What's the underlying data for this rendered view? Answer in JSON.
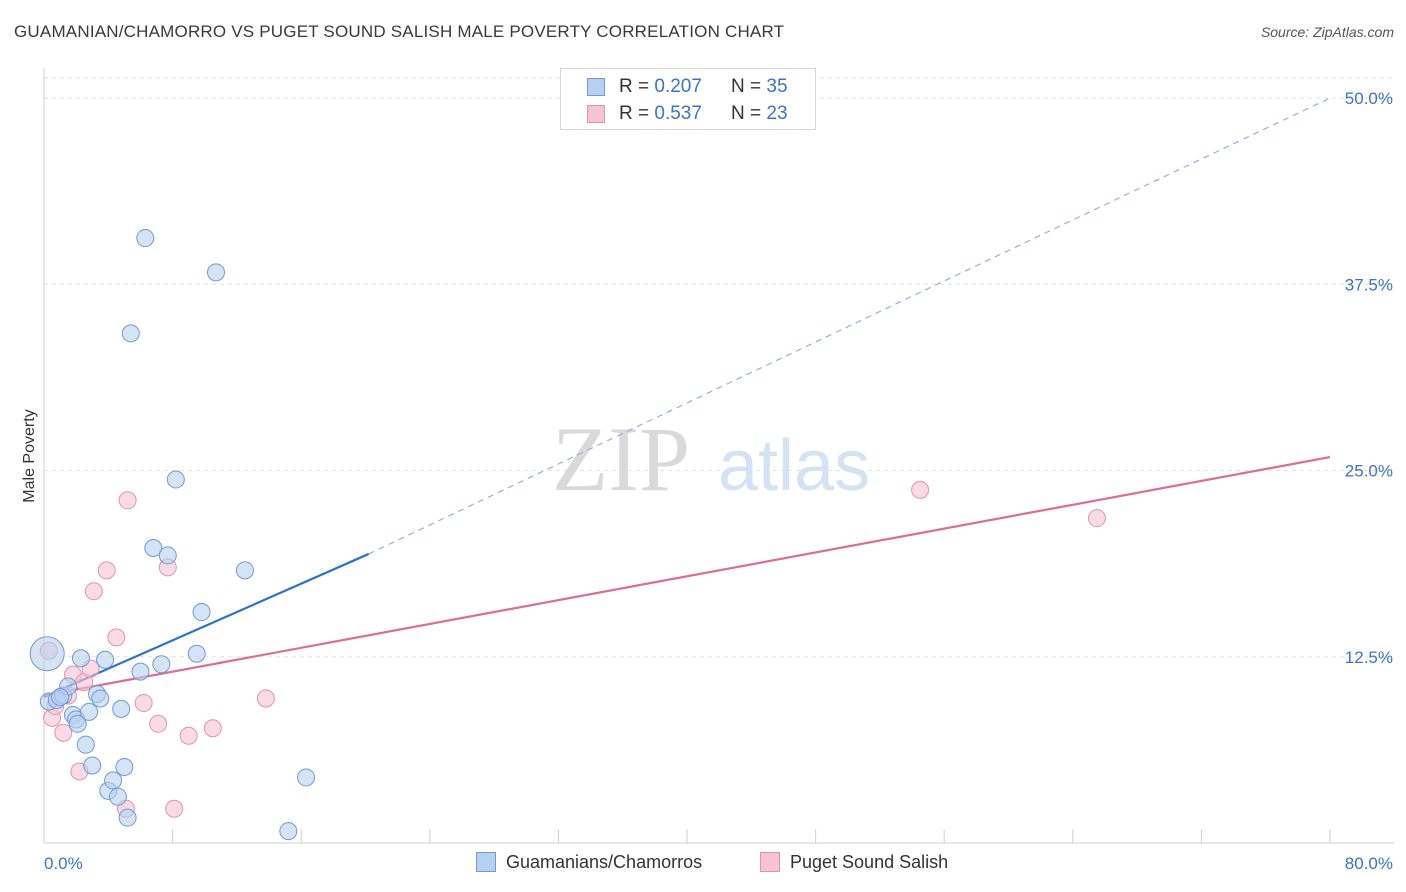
{
  "header": {
    "title": "GUAMANIAN/CHAMORRO VS PUGET SOUND SALISH MALE POVERTY CORRELATION CHART",
    "source": "Source: ZipAtlas.com"
  },
  "watermark": {
    "zip": "ZIP",
    "atlas": "atlas"
  },
  "legend_top": {
    "rows": [
      {
        "r_label": "R =",
        "r_value": "0.207",
        "n_label": "N =",
        "n_value": "35"
      },
      {
        "r_label": "R =",
        "r_value": "0.537",
        "n_label": "N =",
        "n_value": "23"
      }
    ]
  },
  "legend_bottom": {
    "items": [
      {
        "label": "Guamanians/Chamorros"
      },
      {
        "label": "Puget Sound Salish"
      }
    ]
  },
  "colors": {
    "blue_fill": "#b8d0f0",
    "blue_stroke": "#6f9ad6",
    "blue_line": "#2d72d2",
    "pink_fill": "#f7c3d3",
    "pink_stroke": "#e392ad",
    "pink_line": "#e26a96",
    "grid": "#e2e2e2",
    "axis_text": "#3b74c8"
  },
  "chart_data": {
    "type": "scatter",
    "title": "GUAMANIAN/CHAMORRO VS PUGET SOUND SALISH MALE POVERTY CORRELATION CHART",
    "xlabel": "",
    "ylabel": "Male Poverty",
    "xlim": [
      0,
      80
    ],
    "ylim": [
      0,
      50
    ],
    "x_tick_labels": [
      "0.0%",
      "80.0%"
    ],
    "y_ticks": [
      12.5,
      25.0,
      37.5,
      50.0
    ],
    "y_tick_labels": [
      "12.5%",
      "25.0%",
      "37.5%",
      "50.0%"
    ],
    "grid": true,
    "legend_position": "top-center",
    "series": [
      {
        "name": "Guamanians/Chamorros",
        "r": 0.207,
        "n": 35,
        "points": [
          [
            0.2,
            12.7,
            "large"
          ],
          [
            0.3,
            9.5
          ],
          [
            0.8,
            9.6
          ],
          [
            1.2,
            9.9
          ],
          [
            1.5,
            10.5
          ],
          [
            1.8,
            8.6
          ],
          [
            2.0,
            8.3
          ],
          [
            2.1,
            8.0
          ],
          [
            2.3,
            12.4
          ],
          [
            2.6,
            6.6
          ],
          [
            2.8,
            8.8
          ],
          [
            3.0,
            5.2
          ],
          [
            3.3,
            10.0
          ],
          [
            3.5,
            9.7
          ],
          [
            3.8,
            12.3
          ],
          [
            4.0,
            3.5
          ],
          [
            4.3,
            4.2
          ],
          [
            4.6,
            3.1
          ],
          [
            4.8,
            9.0
          ],
          [
            5.0,
            5.1
          ],
          [
            5.2,
            1.7
          ],
          [
            5.4,
            34.2
          ],
          [
            6.0,
            11.5
          ],
          [
            6.3,
            40.6
          ],
          [
            6.8,
            19.8
          ],
          [
            7.3,
            12.0
          ],
          [
            7.7,
            19.3
          ],
          [
            8.2,
            24.4
          ],
          [
            9.5,
            12.7
          ],
          [
            9.8,
            15.5
          ],
          [
            10.7,
            38.3
          ],
          [
            12.5,
            18.3
          ],
          [
            15.2,
            0.8
          ],
          [
            16.3,
            4.4
          ],
          [
            1.0,
            9.8
          ]
        ]
      },
      {
        "name": "Puget Sound Salish",
        "r": 0.537,
        "n": 23,
        "points": [
          [
            0.3,
            12.9
          ],
          [
            0.5,
            8.4
          ],
          [
            0.7,
            9.2
          ],
          [
            1.2,
            7.4
          ],
          [
            1.5,
            9.9
          ],
          [
            1.8,
            11.3
          ],
          [
            2.2,
            4.8
          ],
          [
            2.5,
            10.8
          ],
          [
            2.9,
            11.7
          ],
          [
            3.1,
            16.9
          ],
          [
            3.9,
            18.3
          ],
          [
            4.5,
            13.8
          ],
          [
            5.1,
            2.3
          ],
          [
            5.2,
            23.0
          ],
          [
            6.2,
            9.4
          ],
          [
            7.1,
            8.0
          ],
          [
            7.7,
            18.5
          ],
          [
            8.1,
            2.3
          ],
          [
            9.0,
            7.2
          ],
          [
            10.5,
            7.7
          ],
          [
            13.8,
            9.7
          ],
          [
            54.5,
            23.7
          ],
          [
            65.5,
            21.8
          ]
        ]
      }
    ],
    "trend_lines": [
      {
        "series": "Guamanians/Chamorros",
        "x0": 0,
        "y0": 9.8,
        "x1": 20.2,
        "y1": 19.4,
        "dashed_to_x": 80,
        "dashed_to_y": 50.0
      },
      {
        "series": "Puget Sound Salish",
        "x0": 0,
        "y0": 9.9,
        "x1": 80,
        "y1": 25.9
      }
    ]
  }
}
